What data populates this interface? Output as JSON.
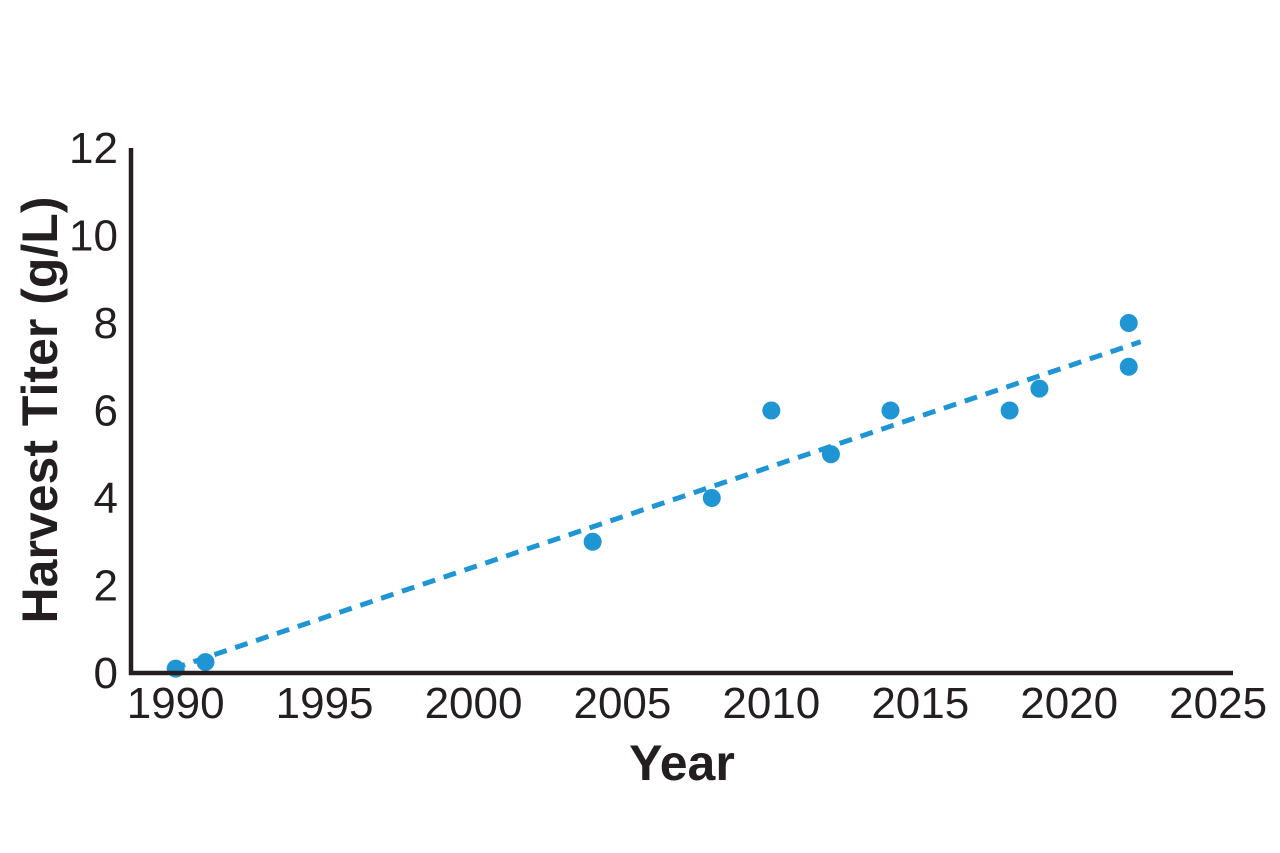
{
  "figure": {
    "background": "#ffffff"
  },
  "chart_data": {
    "type": "scatter",
    "title": "",
    "xlabel": "Year",
    "ylabel": "Harvest Titer (g/L)",
    "x": [
      1990,
      1991,
      2004,
      2008,
      2010,
      2012,
      2014,
      2018,
      2019,
      2022,
      2022
    ],
    "y": [
      0.1,
      0.25,
      3,
      4,
      6,
      5,
      6,
      6,
      6.5,
      8,
      7
    ],
    "x_ticks": [
      1990,
      1995,
      2000,
      2005,
      2010,
      2015,
      2020,
      2025
    ],
    "y_ticks": [
      0,
      2,
      4,
      6,
      8,
      10,
      12
    ],
    "xlim": [
      1988.5,
      2025.5
    ],
    "ylim": [
      0,
      12
    ],
    "grid": false,
    "legend": "none",
    "marker": {
      "shape": "circle",
      "radius_px": 9
    },
    "trendline": {
      "type": "linear",
      "style": "dashed",
      "slope_per_year": 0.23,
      "value_at_1990": 0.12,
      "x_start": 1989.9,
      "x_end": 2022.4
    },
    "colors": {
      "marker": "#2095d3",
      "trendline": "#2095d3",
      "axis": "#231f20",
      "text": "#231f20",
      "background": "#ffffff"
    }
  }
}
